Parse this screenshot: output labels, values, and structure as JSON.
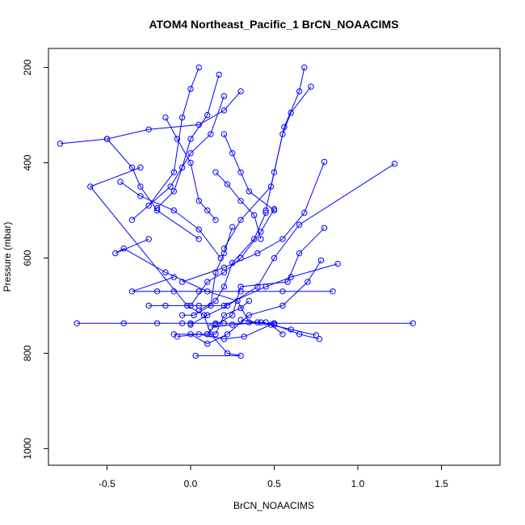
{
  "chart_data": {
    "type": "line",
    "title": "ATOM4 Northeast_Pacific_1 BrCN_NOAACIMS",
    "xlabel": "BrCN_NOAACIMS",
    "ylabel": "Pressure (mbar)",
    "xlim": [
      -0.85,
      1.85
    ],
    "ylim": [
      1035,
      160
    ],
    "y_reversed": true,
    "x_ticks": [
      -0.5,
      0.0,
      0.5,
      1.0,
      1.5
    ],
    "x_tick_labels": [
      "-0.5",
      "0.0",
      "0.5",
      "1.0",
      "1.5"
    ],
    "y_ticks": [
      200,
      400,
      600,
      800,
      1000
    ],
    "y_tick_labels": [
      "200",
      "400",
      "600",
      "800",
      "1000"
    ],
    "grid": false,
    "legend": "none",
    "series_color": "#0000ff",
    "marker": "open-circle",
    "series": [
      {
        "x": [
          0.03,
          0.3,
          0.22,
          0.12,
          0.08,
          -0.02,
          -0.6,
          -0.3
        ],
        "y": [
          805,
          805,
          800,
          760,
          720,
          700,
          450,
          410
        ]
      },
      {
        "x": [
          0.45,
          0.35,
          0.28,
          0.1,
          -0.15,
          -0.4,
          -0.45,
          -0.25
        ],
        "y": [
          735,
          735,
          690,
          670,
          630,
          580,
          590,
          560
        ]
      },
      {
        "x": [
          1.33,
          0.5,
          0.2,
          -0.05,
          -0.2,
          -0.4,
          -0.68,
          0.0,
          0.15,
          0.5
        ],
        "y": [
          737,
          737,
          737,
          737,
          737,
          737,
          737,
          737,
          737,
          737
        ]
      },
      {
        "x": [
          0.85,
          0.55,
          0.3,
          0.05,
          -0.1,
          -0.2,
          -0.35,
          -0.1
        ],
        "y": [
          670,
          670,
          670,
          670,
          670,
          670,
          670,
          640
        ]
      },
      {
        "x": [
          0.88,
          0.6,
          0.45,
          0.2,
          0.05,
          -0.15,
          -0.25
        ],
        "y": [
          612,
          640,
          660,
          700,
          700,
          700,
          700
        ]
      },
      {
        "x": [
          0.8,
          0.65,
          0.58,
          0.3,
          0.25,
          0.15,
          0.1
        ],
        "y": [
          537,
          590,
          650,
          660,
          720,
          740,
          760
        ]
      },
      {
        "x": [
          0.78,
          0.7,
          0.55,
          0.35,
          0.22,
          0.1,
          0.0
        ],
        "y": [
          605,
          650,
          700,
          720,
          760,
          780,
          760
        ]
      },
      {
        "x": [
          0.5,
          0.42,
          0.3,
          0.2,
          0.1,
          0.0
        ],
        "y": [
          497,
          545,
          600,
          630,
          650,
          700
        ]
      },
      {
        "x": [
          0.45,
          0.38,
          0.25,
          0.2,
          0.15,
          0.05
        ],
        "y": [
          505,
          560,
          610,
          660,
          690,
          710
        ]
      },
      {
        "x": [
          0.25,
          0.2,
          0.15,
          0.12,
          0.02,
          -0.05
        ],
        "y": [
          535,
          590,
          630,
          700,
          720,
          720
        ]
      },
      {
        "x": [
          0.35,
          0.3,
          0.2,
          0.15,
          0.1,
          -0.1
        ],
        "y": [
          690,
          705,
          720,
          760,
          760,
          760
        ]
      },
      {
        "x": [
          0.55,
          0.48,
          0.32,
          0.2,
          0.05,
          -0.08
        ],
        "y": [
          760,
          740,
          765,
          770,
          760,
          765
        ]
      },
      {
        "x": [
          0.75,
          0.6,
          0.42,
          0.25,
          0.12
        ],
        "y": [
          762,
          750,
          735,
          740,
          745
        ]
      },
      {
        "x": [
          0.77,
          0.65,
          0.5,
          0.4,
          0.3
        ],
        "y": [
          770,
          760,
          740,
          735,
          730
        ]
      },
      {
        "x": [
          1.22,
          0.65,
          0.5,
          0.4,
          0.22,
          0.1,
          0.0
        ],
        "y": [
          402,
          530,
          600,
          660,
          700,
          720,
          740
        ]
      },
      {
        "x": [
          0.8,
          0.68,
          0.55,
          0.4,
          0.2,
          -0.05
        ],
        "y": [
          398,
          505,
          560,
          590,
          620,
          650
        ]
      },
      {
        "x": [
          0.72,
          0.6,
          0.55,
          0.48,
          0.3,
          0.2
        ],
        "y": [
          240,
          295,
          340,
          450,
          520,
          580
        ]
      },
      {
        "x": [
          0.68,
          0.65,
          0.56,
          0.5,
          0.45
        ],
        "y": [
          200,
          250,
          325,
          420,
          500
        ]
      },
      {
        "x": [
          0.2,
          0.12,
          0.0,
          -0.12,
          -0.35
        ],
        "y": [
          260,
          340,
          380,
          450,
          520
        ]
      },
      {
        "x": [
          0.17,
          0.1,
          0.0,
          -0.05,
          -0.1,
          -0.2
        ],
        "y": [
          215,
          300,
          350,
          410,
          460,
          495
        ]
      },
      {
        "x": [
          0.05,
          0.0,
          -0.05,
          -0.1,
          -0.25
        ],
        "y": [
          200,
          245,
          305,
          420,
          490
        ]
      },
      {
        "x": [
          -0.15,
          -0.08,
          0.0,
          0.05,
          0.1,
          0.15
        ],
        "y": [
          305,
          350,
          400,
          480,
          500,
          520
        ]
      },
      {
        "x": [
          -0.78,
          -0.5,
          -0.25,
          0.05,
          0.2,
          0.3
        ],
        "y": [
          360,
          350,
          330,
          320,
          290,
          250
        ]
      },
      {
        "x": [
          -0.5,
          -0.35,
          -0.3,
          -0.2,
          0.05
        ],
        "y": [
          350,
          410,
          450,
          500,
          560
        ]
      },
      {
        "x": [
          0.15,
          0.22,
          0.3,
          0.38,
          0.42
        ],
        "y": [
          420,
          445,
          480,
          510,
          560
        ]
      },
      {
        "x": [
          0.2,
          0.25,
          0.3,
          0.35,
          0.5
        ],
        "y": [
          340,
          380,
          420,
          460,
          500
        ]
      },
      {
        "x": [
          -0.42,
          -0.3,
          -0.1,
          0.05,
          0.18
        ],
        "y": [
          440,
          470,
          500,
          540,
          600
        ]
      }
    ]
  }
}
